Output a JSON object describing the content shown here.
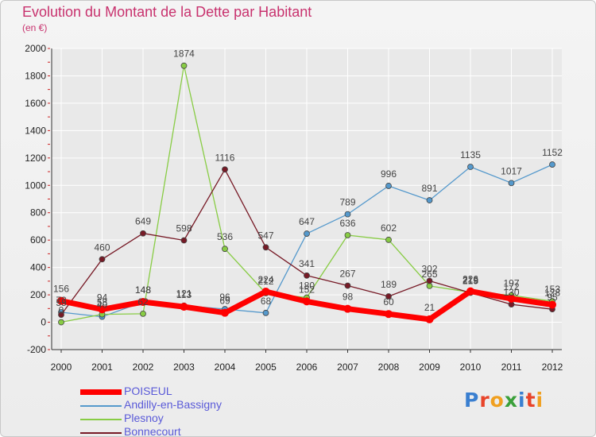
{
  "title": "Evolution du Montant de la Dette par Habitant",
  "subtitle": "(en €)",
  "logo_text": "Proxiti",
  "colors": {
    "title": "#c8326e",
    "axis": "#333333",
    "grid": "#ffffff",
    "tick_accent": "#cc2222",
    "legend_text": "#5a5ad8"
  },
  "chart_data": {
    "type": "line",
    "title": "Evolution du Montant de la Dette par Habitant",
    "subtitle": "(en €)",
    "x": [
      2000,
      2001,
      2002,
      2003,
      2004,
      2005,
      2006,
      2007,
      2008,
      2009,
      2010,
      2011,
      2012
    ],
    "xlabel": "",
    "ylabel": "",
    "ylim": [
      -200,
      2000
    ],
    "y_ticks": [
      -200,
      0,
      200,
      400,
      600,
      800,
      1000,
      1200,
      1400,
      1600,
      1800,
      2000
    ],
    "grid": true,
    "legend_position": "bottom-left",
    "series": [
      {
        "name": "POISEUL",
        "color": "#ff0000",
        "width": 7,
        "values": [
          156,
          94,
          148,
          113,
          69,
          224,
          152,
          98,
          60,
          21,
          226,
          172,
          128
        ],
        "labels": [
          "156",
          "94",
          "148",
          "113",
          "69",
          "224",
          "152",
          "98",
          "60",
          "21",
          "226",
          "172",
          "128"
        ]
      },
      {
        "name": "Andilly-en-Bassigny",
        "color": "#5599cc",
        "width": 1.3,
        "values": [
          73,
          40,
          148,
          121,
          96,
          68,
          647,
          789,
          996,
          891,
          1135,
          1017,
          1152
        ],
        "labels": [
          "73",
          "40",
          "148",
          "121",
          "96",
          "68",
          "647",
          "789",
          "996",
          "891",
          "1135",
          "1017",
          "1152"
        ]
      },
      {
        "name": "Plesnoy",
        "color": "#88cc44",
        "width": 1.3,
        "values": [
          0,
          58,
          62,
          1874,
          536,
          212,
          180,
          636,
          602,
          265,
          219,
          197,
          153
        ],
        "labels": [
          "0",
          "58",
          "62",
          "1874",
          "536",
          "212",
          "180",
          "636",
          "602",
          "265",
          "219",
          "197",
          "153"
        ]
      },
      {
        "name": "Bonnecourt",
        "color": "#771a26",
        "width": 1.3,
        "values": [
          55,
          460,
          649,
          598,
          1116,
          547,
          341,
          267,
          189,
          302,
          215,
          130,
          95
        ],
        "labels": [
          "55",
          "460",
          "649",
          "598",
          "1116",
          "547",
          "341",
          "267",
          "189",
          "302",
          "215",
          "130",
          "95"
        ]
      }
    ]
  }
}
